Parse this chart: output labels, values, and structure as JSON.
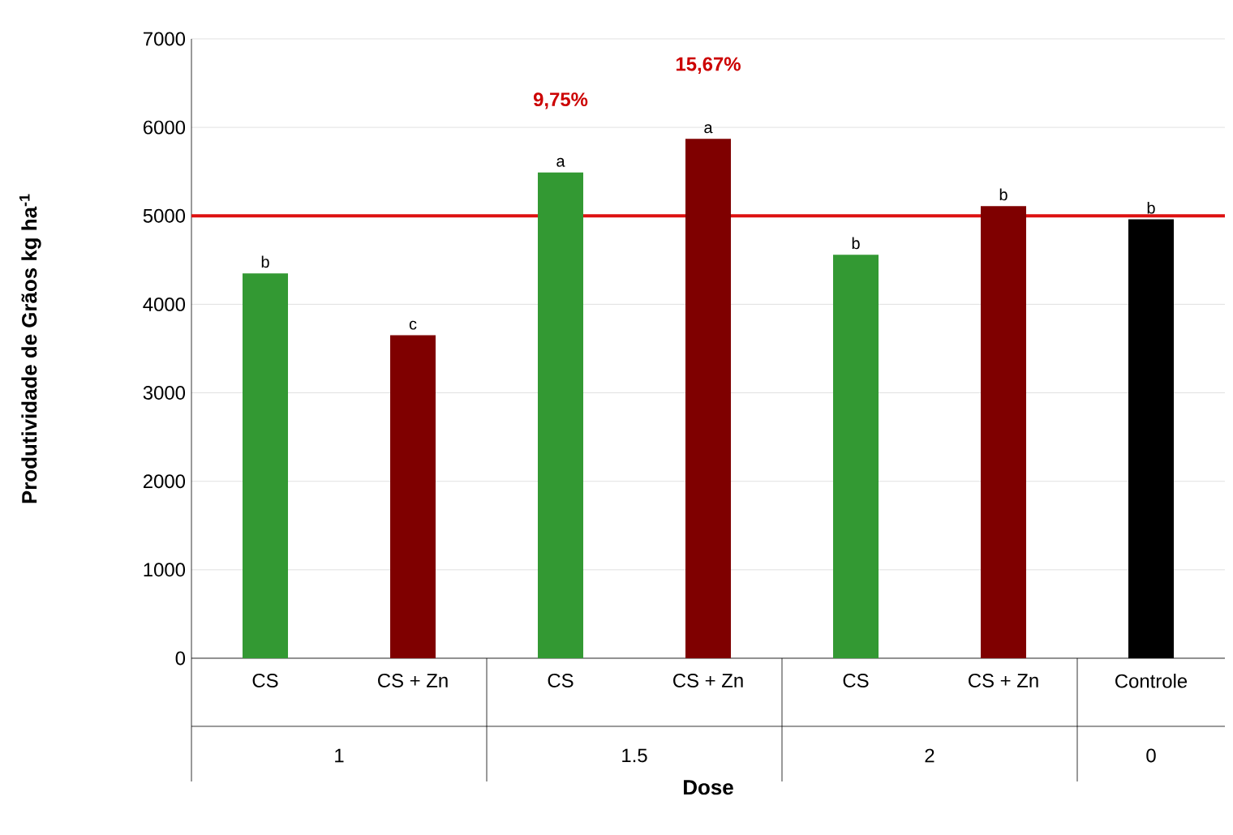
{
  "chart_data": {
    "type": "bar",
    "xlabel": "Dose",
    "ylabel": "Produtividade de Grãos kg ha$^{-1}$",
    "categories": [
      "CS",
      "CS + Zn",
      "CS",
      "CS + Zn",
      "CS",
      "CS + Zn",
      "Controle"
    ],
    "values": [
      4350,
      3650,
      5490,
      5870,
      4560,
      5110,
      4960
    ],
    "colors": [
      "#339933",
      "#7f0000",
      "#339933",
      "#7f0000",
      "#339933",
      "#7f0000",
      "#000000"
    ],
    "value_labels": [
      "b",
      "c",
      "a",
      "a",
      "b",
      "b",
      "b"
    ],
    "ylim": [
      0,
      7000
    ],
    "yticks": [
      0,
      1000,
      2000,
      3000,
      4000,
      5000,
      6000,
      7000
    ],
    "grid": "y",
    "ref_lines": [
      {
        "axis": "y",
        "value": 5000,
        "color": "#dd1111"
      }
    ],
    "annotations": [
      "9,75%",
      "15,67%",
      "1",
      "1.5",
      "2",
      "0"
    ]
  }
}
